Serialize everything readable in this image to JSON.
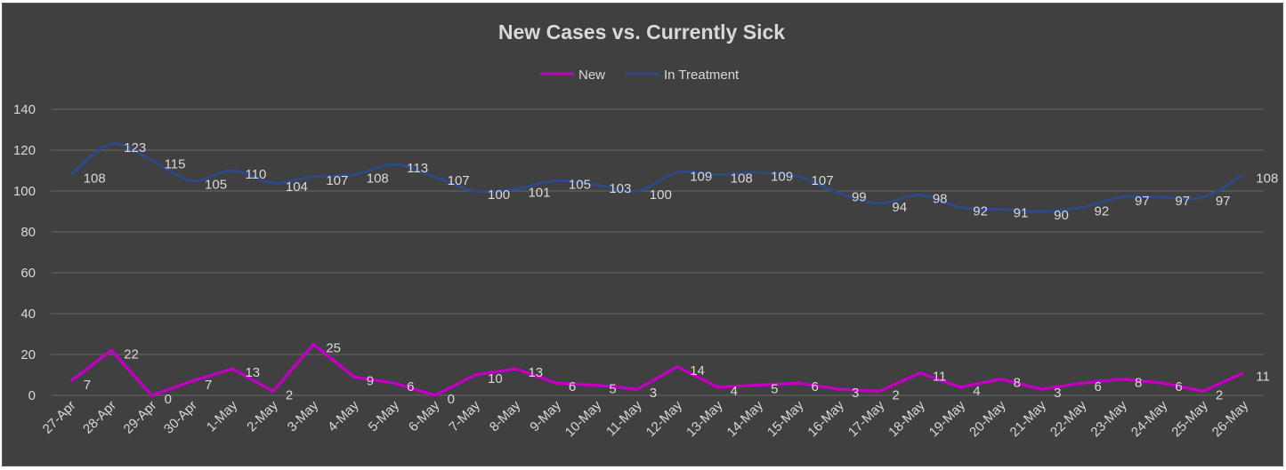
{
  "chart_data": {
    "type": "line",
    "title": "New Cases vs. Currently Sick",
    "xlabel": "",
    "ylabel": "",
    "ylim": [
      0,
      140
    ],
    "yticks": [
      0,
      20,
      40,
      60,
      80,
      100,
      120,
      140
    ],
    "grid": true,
    "legend_position": "top",
    "categories": [
      "27-Apr",
      "28-Apr",
      "29-Apr",
      "30-Apr",
      "1-May",
      "2-May",
      "3-May",
      "4-May",
      "5-May",
      "6-May",
      "7-May",
      "8-May",
      "9-May",
      "10-May",
      "11-May",
      "12-May",
      "13-May",
      "14-May",
      "15-May",
      "16-May",
      "17-May",
      "18-May",
      "19-May",
      "20-May",
      "21-May",
      "22-May",
      "23-May",
      "24-May",
      "25-May",
      "26-May"
    ],
    "series": [
      {
        "name": "New",
        "color": "#c000c0",
        "values": [
          7,
          22,
          0,
          7,
          13,
          2,
          25,
          9,
          6,
          0,
          10,
          13,
          6,
          5,
          3,
          14,
          4,
          5,
          6,
          3,
          2,
          11,
          4,
          8,
          3,
          6,
          8,
          6,
          2,
          11
        ]
      },
      {
        "name": "In Treatment",
        "color": "#2e4a86",
        "values": [
          108,
          123,
          115,
          105,
          110,
          104,
          107,
          108,
          113,
          107,
          100,
          101,
          105,
          103,
          100,
          109,
          108,
          109,
          107,
          99,
          94,
          98,
          92,
          91,
          90,
          92,
          97,
          97,
          97,
          108
        ]
      }
    ]
  }
}
